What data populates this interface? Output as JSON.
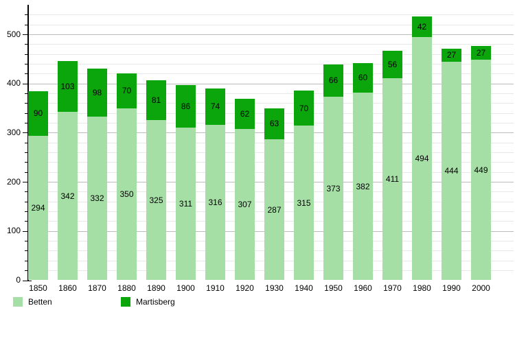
{
  "chart_data": {
    "type": "bar",
    "stacked": true,
    "title": "",
    "xlabel": "",
    "ylabel": "",
    "categories": [
      "1850",
      "1860",
      "1870",
      "1880",
      "1890",
      "1900",
      "1910",
      "1920",
      "1930",
      "1940",
      "1950",
      "1960",
      "1970",
      "1980",
      "1990",
      "2000"
    ],
    "series": [
      {
        "name": "Betten",
        "color": "#a6dfa6",
        "values": [
          294,
          342,
          332,
          350,
          325,
          311,
          316,
          307,
          287,
          315,
          373,
          382,
          411,
          494,
          444,
          449
        ]
      },
      {
        "name": "Martisberg",
        "color": "#0aa60b",
        "values": [
          90,
          103,
          98,
          70,
          81,
          86,
          74,
          62,
          63,
          70,
          66,
          60,
          56,
          42,
          27,
          27
        ]
      }
    ],
    "ylim": [
      0,
      540
    ],
    "y_major_ticks": [
      0,
      100,
      200,
      300,
      400,
      500
    ],
    "y_minor_step": 20,
    "grid": true,
    "bar_value_labels": "value centered inside each segment",
    "legend_position": "bottom-left",
    "colors": {
      "background": "#ffffff",
      "axis": "#000000",
      "grid_major": "#bbbbbb",
      "grid_minor": "#e8e8e8",
      "label_text": "#000000"
    }
  }
}
